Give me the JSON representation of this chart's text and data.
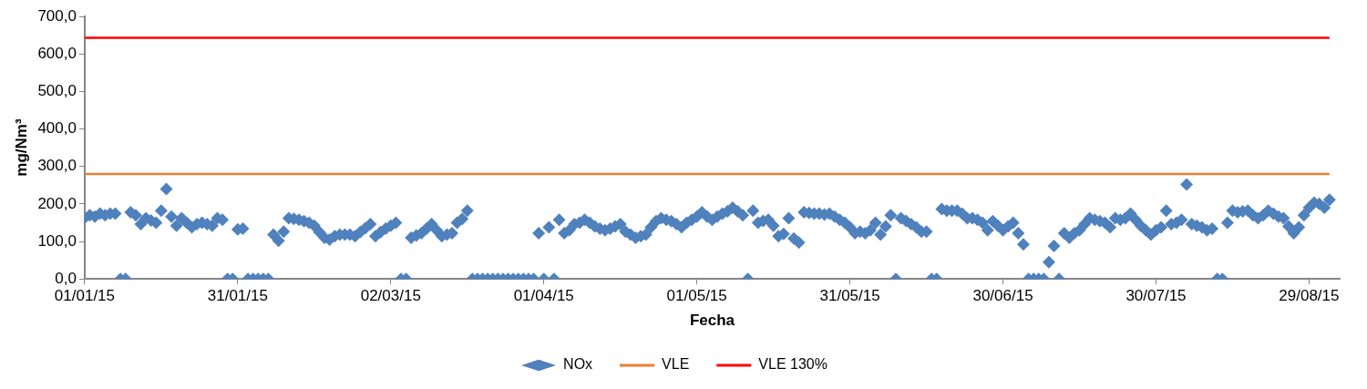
{
  "chart_data": {
    "type": "scatter",
    "xlabel": "Fecha",
    "ylabel": "mg/Nm³",
    "xlim": [
      "2015-01-01",
      "2015-09-04"
    ],
    "xticks": [
      {
        "value": "2015-01-01",
        "label": "01/01/15"
      },
      {
        "value": "2015-01-31",
        "label": "31/01/15"
      },
      {
        "value": "2015-03-02",
        "label": "02/03/15"
      },
      {
        "value": "2015-04-01",
        "label": "01/04/15"
      },
      {
        "value": "2015-05-01",
        "label": "01/05/15"
      },
      {
        "value": "2015-05-31",
        "label": "31/05/15"
      },
      {
        "value": "2015-06-30",
        "label": "30/06/15"
      },
      {
        "value": "2015-07-30",
        "label": "30/07/15"
      },
      {
        "value": "2015-08-29",
        "label": "29/08/15"
      }
    ],
    "ylim": [
      0,
      700
    ],
    "yticks": [
      {
        "value": 0,
        "label": "0,0"
      },
      {
        "value": 100,
        "label": "100,0"
      },
      {
        "value": 200,
        "label": "200,0"
      },
      {
        "value": 300,
        "label": "300,0"
      },
      {
        "value": 400,
        "label": "400,0"
      },
      {
        "value": 500,
        "label": "500,0"
      },
      {
        "value": 600,
        "label": "600,0"
      },
      {
        "value": 700,
        "label": "700,0"
      }
    ],
    "grid": false,
    "legend": "bottom",
    "series": [
      {
        "name": "NOx",
        "marker": "diamond",
        "color": "#4f81bd",
        "x": [
          "2015-01-01",
          "2015-01-02",
          "2015-01-03",
          "2015-01-04",
          "2015-01-05",
          "2015-01-06",
          "2015-01-07",
          "2015-01-08",
          "2015-01-09",
          "2015-01-10",
          "2015-01-11",
          "2015-01-12",
          "2015-01-13",
          "2015-01-14",
          "2015-01-15",
          "2015-01-16",
          "2015-01-17",
          "2015-01-18",
          "2015-01-19",
          "2015-01-20",
          "2015-01-21",
          "2015-01-22",
          "2015-01-23",
          "2015-01-24",
          "2015-01-25",
          "2015-01-26",
          "2015-01-27",
          "2015-01-28",
          "2015-01-29",
          "2015-01-30",
          "2015-01-31",
          "2015-02-01",
          "2015-02-02",
          "2015-02-03",
          "2015-02-04",
          "2015-02-05",
          "2015-02-06",
          "2015-02-07",
          "2015-02-08",
          "2015-02-09",
          "2015-02-10",
          "2015-02-11",
          "2015-02-12",
          "2015-02-13",
          "2015-02-14",
          "2015-02-15",
          "2015-02-16",
          "2015-02-17",
          "2015-02-18",
          "2015-02-19",
          "2015-02-20",
          "2015-02-21",
          "2015-02-22",
          "2015-02-23",
          "2015-02-24",
          "2015-02-25",
          "2015-02-26",
          "2015-02-27",
          "2015-02-28",
          "2015-03-01",
          "2015-03-02",
          "2015-03-03",
          "2015-03-04",
          "2015-03-05",
          "2015-03-06",
          "2015-03-07",
          "2015-03-08",
          "2015-03-09",
          "2015-03-10",
          "2015-03-11",
          "2015-03-12",
          "2015-03-13",
          "2015-03-14",
          "2015-03-15",
          "2015-03-16",
          "2015-03-17",
          "2015-03-18",
          "2015-03-19",
          "2015-03-20",
          "2015-03-21",
          "2015-03-22",
          "2015-03-23",
          "2015-03-24",
          "2015-03-25",
          "2015-03-26",
          "2015-03-27",
          "2015-03-28",
          "2015-03-29",
          "2015-03-30",
          "2015-03-31",
          "2015-04-01",
          "2015-04-02",
          "2015-04-03",
          "2015-04-04",
          "2015-04-05",
          "2015-04-06",
          "2015-04-07",
          "2015-04-08",
          "2015-04-09",
          "2015-04-10",
          "2015-04-11",
          "2015-04-12",
          "2015-04-13",
          "2015-04-14",
          "2015-04-15",
          "2015-04-16",
          "2015-04-17",
          "2015-04-18",
          "2015-04-19",
          "2015-04-20",
          "2015-04-21",
          "2015-04-22",
          "2015-04-23",
          "2015-04-24",
          "2015-04-25",
          "2015-04-26",
          "2015-04-27",
          "2015-04-28",
          "2015-04-29",
          "2015-04-30",
          "2015-05-01",
          "2015-05-02",
          "2015-05-03",
          "2015-05-04",
          "2015-05-05",
          "2015-05-06",
          "2015-05-07",
          "2015-05-08",
          "2015-05-09",
          "2015-05-10",
          "2015-05-11",
          "2015-05-12",
          "2015-05-13",
          "2015-05-14",
          "2015-05-15",
          "2015-05-16",
          "2015-05-17",
          "2015-05-18",
          "2015-05-19",
          "2015-05-20",
          "2015-05-21",
          "2015-05-22",
          "2015-05-23",
          "2015-05-24",
          "2015-05-25",
          "2015-05-26",
          "2015-05-27",
          "2015-05-28",
          "2015-05-29",
          "2015-05-30",
          "2015-05-31",
          "2015-06-01",
          "2015-06-02",
          "2015-06-03",
          "2015-06-04",
          "2015-06-05",
          "2015-06-06",
          "2015-06-07",
          "2015-06-08",
          "2015-06-09",
          "2015-06-10",
          "2015-06-11",
          "2015-06-12",
          "2015-06-13",
          "2015-06-14",
          "2015-06-15",
          "2015-06-16",
          "2015-06-17",
          "2015-06-18",
          "2015-06-19",
          "2015-06-20",
          "2015-06-21",
          "2015-06-22",
          "2015-06-23",
          "2015-06-24",
          "2015-06-25",
          "2015-06-26",
          "2015-06-27",
          "2015-06-28",
          "2015-06-29",
          "2015-06-30",
          "2015-07-01",
          "2015-07-02",
          "2015-07-03",
          "2015-07-04",
          "2015-07-05",
          "2015-07-06",
          "2015-07-07",
          "2015-07-08",
          "2015-07-09",
          "2015-07-10",
          "2015-07-11",
          "2015-07-12",
          "2015-07-13",
          "2015-07-14",
          "2015-07-15",
          "2015-07-16",
          "2015-07-17",
          "2015-07-18",
          "2015-07-19",
          "2015-07-20",
          "2015-07-21",
          "2015-07-22",
          "2015-07-23",
          "2015-07-24",
          "2015-07-25",
          "2015-07-26",
          "2015-07-27",
          "2015-07-28",
          "2015-07-29",
          "2015-07-30",
          "2015-07-31",
          "2015-08-01",
          "2015-08-02",
          "2015-08-03",
          "2015-08-04",
          "2015-08-05",
          "2015-08-06",
          "2015-08-07",
          "2015-08-08",
          "2015-08-09",
          "2015-08-10",
          "2015-08-11",
          "2015-08-12",
          "2015-08-13",
          "2015-08-14",
          "2015-08-15",
          "2015-08-16",
          "2015-08-17",
          "2015-08-18",
          "2015-08-19",
          "2015-08-20",
          "2015-08-21",
          "2015-08-22",
          "2015-08-23",
          "2015-08-24",
          "2015-08-25",
          "2015-08-26",
          "2015-08-27",
          "2015-08-28",
          "2015-08-29",
          "2015-08-30",
          "2015-08-31",
          "2015-09-01",
          "2015-09-02"
        ],
        "values": [
          163,
          170,
          166,
          174,
          170,
          174,
          174,
          0,
          0,
          178,
          170,
          146,
          162,
          156,
          150,
          182,
          240,
          166,
          142,
          162,
          150,
          138,
          146,
          150,
          146,
          142,
          162,
          158,
          0,
          0,
          132,
          134,
          0,
          0,
          0,
          0,
          0,
          118,
          102,
          126,
          162,
          160,
          158,
          154,
          150,
          142,
          125,
          110,
          105,
          114,
          118,
          118,
          118,
          114,
          125,
          135,
          146,
          114,
          125,
          134,
          142,
          150,
          0,
          0,
          110,
          116,
          122,
          134,
          146,
          130,
          114,
          118,
          122,
          150,
          160,
          182,
          0,
          0,
          0,
          0,
          0,
          0,
          0,
          0,
          0,
          0,
          0,
          0,
          0,
          122,
          0,
          138,
          0,
          158,
          122,
          130,
          146,
          150,
          158,
          150,
          140,
          134,
          130,
          134,
          140,
          146,
          126,
          118,
          110,
          114,
          118,
          138,
          154,
          162,
          158,
          154,
          146,
          138,
          150,
          158,
          166,
          178,
          166,
          158,
          166,
          174,
          180,
          190,
          180,
          170,
          0,
          182,
          150,
          155,
          158,
          142,
          114,
          120,
          162,
          108,
          97,
          178,
          176,
          174,
          174,
          172,
          174,
          166,
          158,
          150,
          138,
          122,
          126,
          122,
          130,
          150,
          118,
          140,
          170,
          0,
          162,
          155,
          146,
          138,
          126,
          126,
          0,
          0,
          186,
          182,
          182,
          182,
          174,
          162,
          162,
          158,
          150,
          130,
          154,
          142,
          130,
          140,
          150,
          122,
          92,
          0,
          0,
          0,
          0,
          45,
          88,
          0,
          122,
          110,
          122,
          130,
          146,
          162,
          158,
          154,
          150,
          138,
          162,
          158,
          162,
          174,
          158,
          142,
          130,
          118,
          130,
          138,
          182,
          146,
          150,
          158,
          252,
          146,
          142,
          138,
          130,
          134,
          0,
          0,
          150,
          182,
          178,
          180,
          182,
          170,
          162,
          170,
          182,
          174,
          166,
          162,
          140,
          122,
          138,
          170,
          190,
          203,
          200,
          190,
          211
        ]
      },
      {
        "name": "VLE",
        "type": "line",
        "marker": "none",
        "color": "#ed7d31",
        "x": [
          "2015-01-01",
          "2015-09-02"
        ],
        "values": [
          280,
          280
        ]
      },
      {
        "name": "VLE 130%",
        "type": "line",
        "marker": "none",
        "color": "#ff0000",
        "x": [
          "2015-01-01",
          "2015-09-02"
        ],
        "values": [
          643,
          643
        ]
      }
    ]
  }
}
